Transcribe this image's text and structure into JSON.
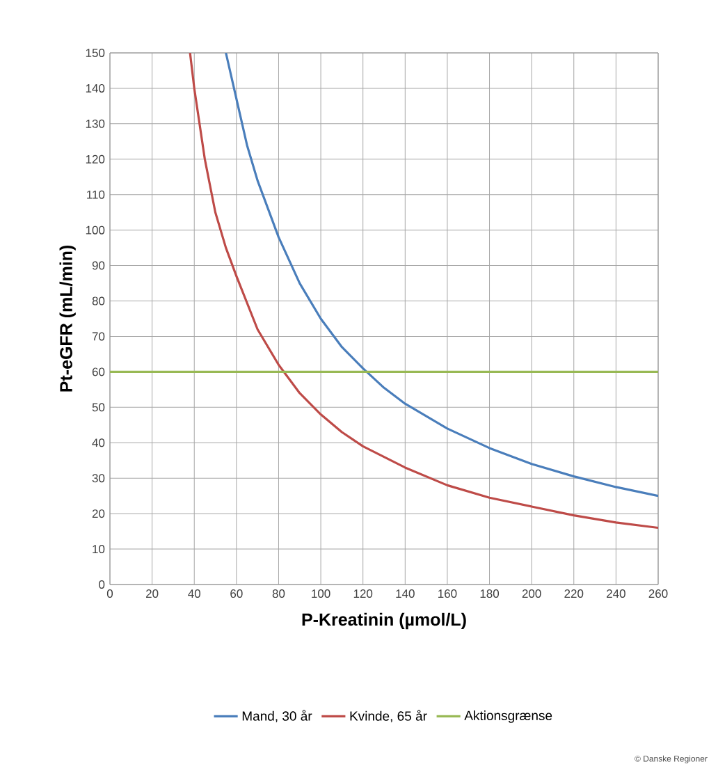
{
  "chart_data": {
    "type": "line",
    "xlabel": "P-Kreatinin (µmol/L)",
    "ylabel": "Pt-eGFR (mL/min)",
    "xlim": [
      0,
      260
    ],
    "ylim": [
      0,
      150
    ],
    "xticks": [
      0,
      20,
      40,
      60,
      80,
      100,
      120,
      140,
      160,
      180,
      200,
      220,
      240,
      260
    ],
    "yticks": [
      0,
      10,
      20,
      30,
      40,
      50,
      60,
      70,
      80,
      90,
      100,
      110,
      120,
      130,
      140,
      150
    ],
    "grid": true,
    "legend": "bottom",
    "marker": "none",
    "line_style": "solid",
    "annotations": [
      "© Danske Regioner"
    ],
    "series": [
      {
        "name": "Mand, 30 år",
        "color": "#4a7ebb",
        "x": [
          55,
          60,
          65,
          70,
          80,
          90,
          100,
          110,
          120,
          130,
          140,
          160,
          180,
          200,
          220,
          240,
          260
        ],
        "values": [
          150,
          137,
          124,
          114,
          98,
          85,
          75,
          67,
          61,
          55.5,
          51,
          44,
          38.5,
          34,
          30.5,
          27.5,
          25
        ]
      },
      {
        "name": "Kvinde, 65 år",
        "color": "#be4b48",
        "x": [
          38,
          40,
          45,
          50,
          55,
          60,
          70,
          80,
          90,
          100,
          110,
          120,
          140,
          160,
          180,
          200,
          220,
          240,
          260
        ],
        "values": [
          150,
          140,
          120,
          105,
          95,
          87,
          72,
          62,
          54,
          48,
          43,
          39,
          33,
          28,
          24.5,
          22,
          19.5,
          17.5,
          16
        ]
      },
      {
        "name": "Aktionsgrænse",
        "color": "#98b954",
        "x": [
          0,
          260
        ],
        "values": [
          60,
          60
        ]
      }
    ]
  }
}
